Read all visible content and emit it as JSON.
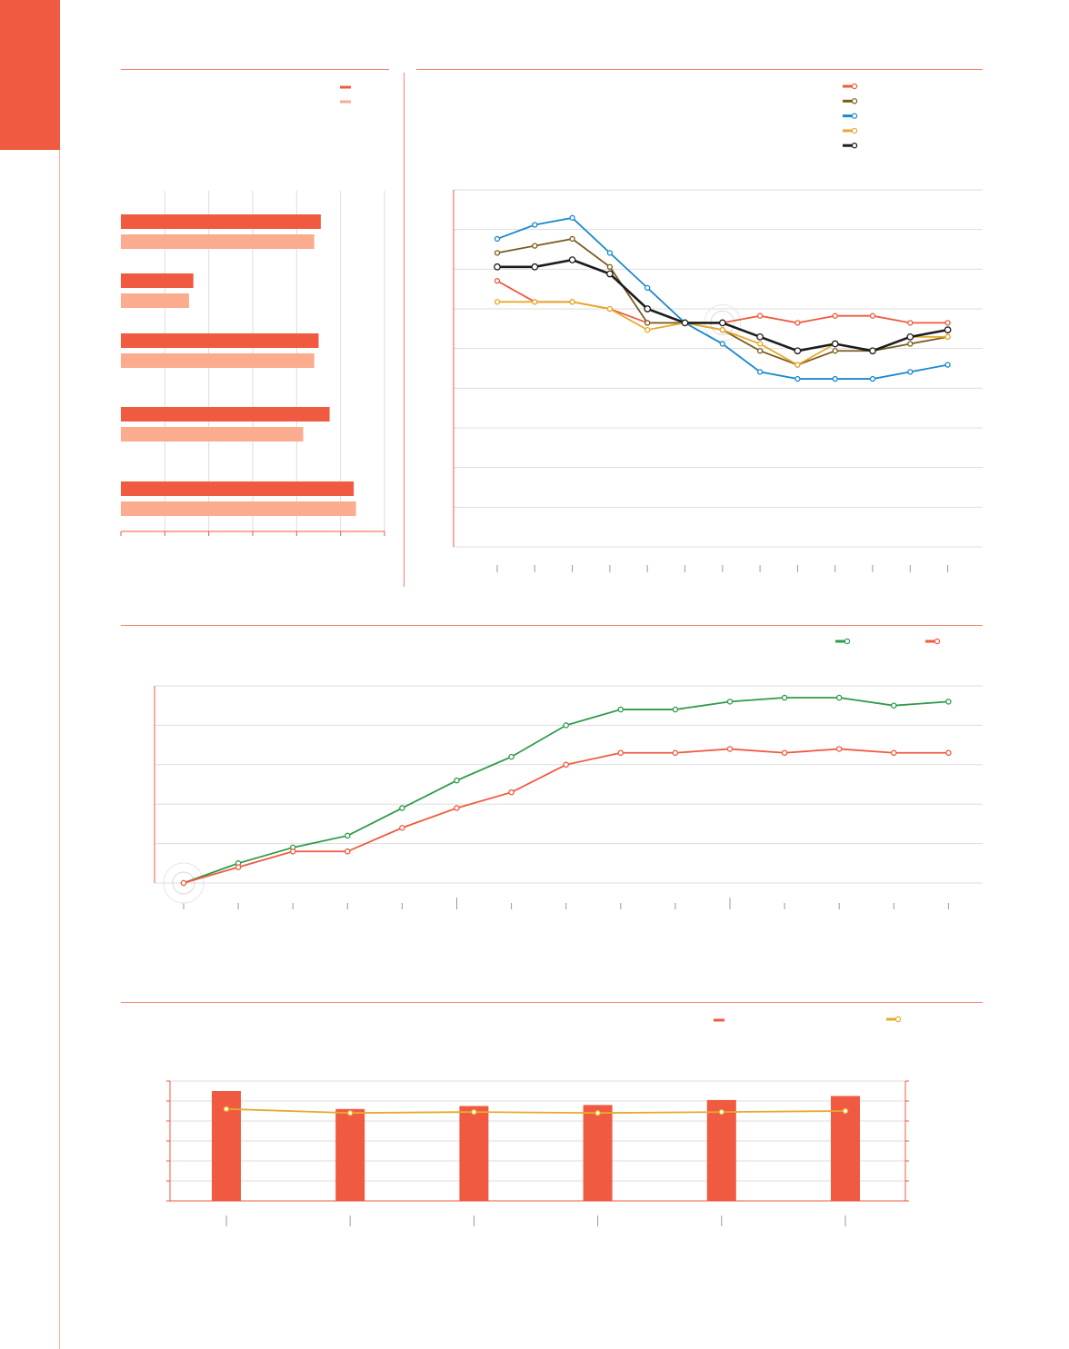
{
  "colors": {
    "accent": "#f05a40",
    "accent_light": "#fbab8e",
    "green": "#2f9a4a",
    "blue": "#1a88cc",
    "brown": "#7a5c1e",
    "gold": "#e8a92c",
    "black": "#1c1c1c",
    "grid": "#dddddd"
  },
  "chart_data": [
    {
      "type": "bar",
      "orientation": "horizontal",
      "categories": [
        "",
        "",
        "",
        "",
        ""
      ],
      "series": [
        {
          "values": [
            91,
            33,
            90,
            95,
            106
          ]
        },
        {
          "values": [
            88,
            31,
            88,
            83,
            107
          ]
        }
      ],
      "xlim": [
        0,
        120
      ],
      "grid": true,
      "legend": "top-right"
    },
    {
      "type": "line",
      "x": [
        1,
        2,
        3,
        4,
        5,
        6,
        7,
        8,
        9,
        10,
        11,
        12,
        13
      ],
      "series": [
        {
          "color": "#f05a40",
          "values": [
            100,
            97,
            97,
            96,
            94,
            94,
            94,
            95,
            94,
            95,
            95,
            94,
            94
          ]
        },
        {
          "color": "#7a5c1e",
          "values": [
            104,
            105,
            106,
            102,
            94,
            94,
            93,
            90,
            88,
            90,
            90,
            91,
            92
          ]
        },
        {
          "color": "#1a88cc",
          "values": [
            106,
            108,
            109,
            104,
            99,
            94,
            91,
            87,
            86,
            86,
            86,
            87,
            88
          ]
        },
        {
          "color": "#e8a92c",
          "values": [
            97,
            97,
            97,
            96,
            93,
            94,
            93,
            91,
            88,
            91,
            90,
            92,
            92
          ]
        },
        {
          "color": "#1c1c1c",
          "values": [
            102,
            102,
            103,
            101,
            96,
            94,
            94,
            92,
            90,
            91,
            90,
            92,
            93
          ]
        }
      ],
      "ylim": [
        62,
        113
      ],
      "grid": true,
      "legend": "top-right"
    },
    {
      "type": "line",
      "x": [
        1,
        2,
        3,
        4,
        5,
        6,
        7,
        8,
        9,
        10,
        11,
        12,
        13,
        14,
        15
      ],
      "series": [
        {
          "color": "#2f9a4a",
          "values": [
            0,
            5,
            9,
            12,
            19,
            26,
            32,
            40,
            44,
            44,
            46,
            47,
            47,
            45,
            46
          ]
        },
        {
          "color": "#f05a40",
          "values": [
            0,
            4,
            8,
            8,
            14,
            19,
            23,
            30,
            33,
            33,
            34,
            33,
            34,
            33,
            33
          ]
        }
      ],
      "ylim": [
        0,
        50
      ],
      "grid": true,
      "legend": "top-right"
    },
    {
      "type": "bar",
      "categories": [
        "",
        "",
        "",
        "",
        "",
        ""
      ],
      "series": [
        {
          "kind": "bar",
          "color": "#f05a40",
          "values": [
            55,
            46,
            47.5,
            48,
            50.5,
            52.5
          ]
        },
        {
          "kind": "line",
          "color": "#e8a92c",
          "values": [
            46,
            44,
            44.5,
            44,
            44.5,
            45
          ]
        }
      ],
      "ylim": [
        0,
        60
      ],
      "grid": true,
      "legend": "top-right"
    }
  ]
}
